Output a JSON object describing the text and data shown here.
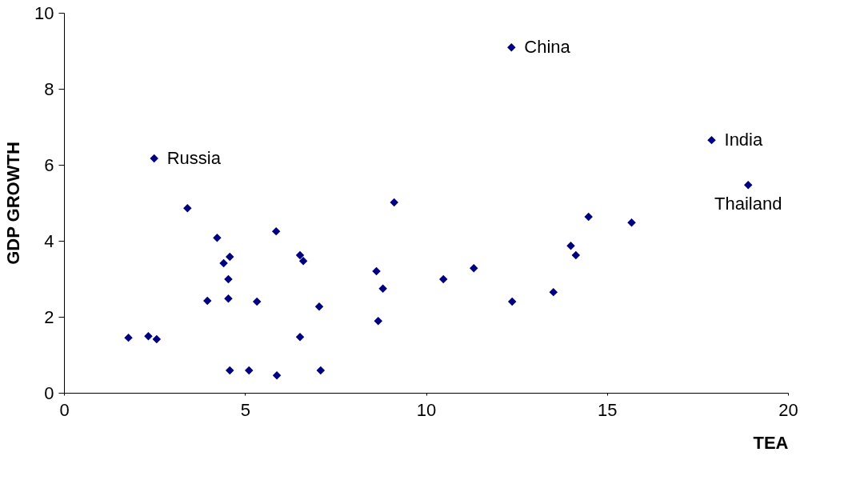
{
  "chart_data": {
    "type": "scatter",
    "xlabel": "TEA",
    "ylabel": "GDP GROWTH",
    "xlim": [
      0,
      20
    ],
    "xticks": [
      0,
      5,
      10,
      15,
      20
    ],
    "ylim": [
      0,
      10
    ],
    "yticks": [
      0,
      2,
      4,
      6,
      8,
      10
    ],
    "grid": false,
    "legend": false,
    "marker": "diamond",
    "series": [
      {
        "color": "#000080",
        "x": [
          1.78,
          2.49,
          2.33,
          2.56,
          3.41,
          3.96,
          4.23,
          4.41,
          4.58,
          4.54,
          4.54,
          4.58,
          5.11,
          5.33,
          5.88,
          5.86,
          6.52,
          6.61,
          6.52,
          7.05,
          7.09,
          8.63,
          8.68,
          8.81,
          9.12,
          10.48,
          11.32,
          12.36,
          12.38,
          13.52,
          14.0,
          14.14,
          14.49,
          15.68,
          17.89,
          18.9
        ],
        "values": [
          1.45,
          6.17,
          1.49,
          1.41,
          4.86,
          2.42,
          4.08,
          3.41,
          3.58,
          2.99,
          2.48,
          0.59,
          0.59,
          2.4,
          0.46,
          4.25,
          3.62,
          3.47,
          1.47,
          2.27,
          0.59,
          3.2,
          1.89,
          2.74,
          5.01,
          2.99,
          3.28,
          9.09,
          2.4,
          2.65,
          3.87,
          3.62,
          4.63,
          4.48,
          6.65,
          5.47
        ]
      }
    ],
    "annotations": [
      {
        "text": "Russia",
        "x": 2.49,
        "y": 6.17
      },
      {
        "text": "China",
        "x": 12.36,
        "y": 9.09
      },
      {
        "text": "India",
        "x": 17.89,
        "y": 6.65
      },
      {
        "text": "Thailand",
        "x": 18.9,
        "y": 5.47
      }
    ]
  }
}
